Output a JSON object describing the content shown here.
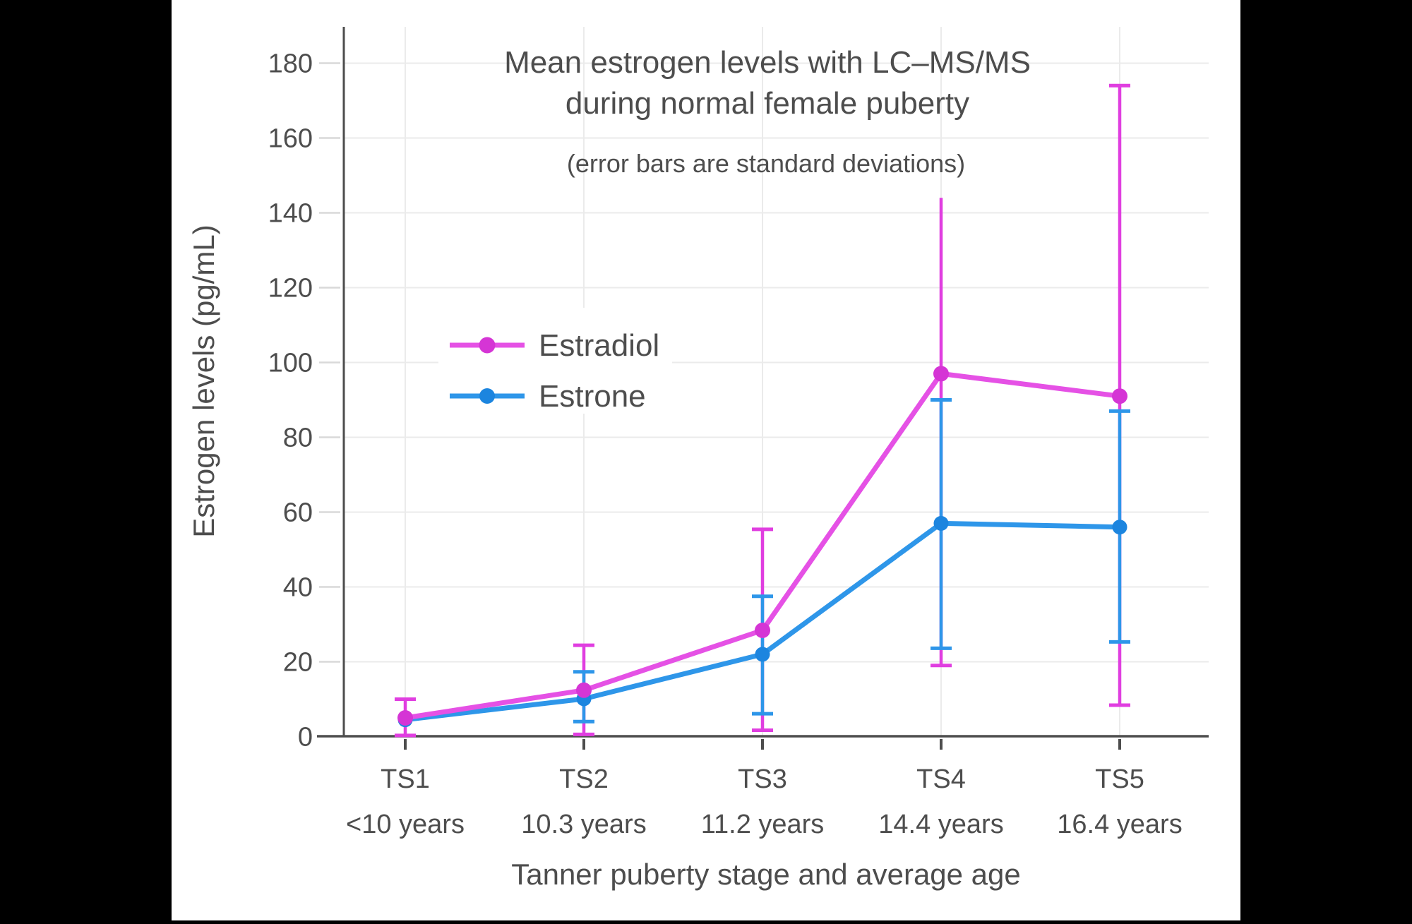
{
  "page": {
    "background_bar_color": "#000000",
    "canvas_color": "#ffffff"
  },
  "chart_data": {
    "type": "line",
    "title": "Mean estrogen levels with LC–MS/MS",
    "title_line2": "during normal female puberty",
    "subtitle": "(error bars are standard deviations)",
    "xlabel": "Tanner puberty stage and average age",
    "ylabel": "Estrogen levels (pg/mL)",
    "x_tick_top": [
      "TS1",
      "TS2",
      "TS3",
      "TS4",
      "TS5"
    ],
    "x_tick_bottom": [
      "<10 years",
      "10.3 years",
      "11.2 years",
      "14.4 years",
      "16.4 years"
    ],
    "y_ticks": [
      0,
      20,
      40,
      60,
      80,
      100,
      120,
      140,
      160,
      180
    ],
    "ylim": [
      0,
      190
    ],
    "grid": true,
    "legend_position": "inside upper-left",
    "colors": {
      "axis": "#4d4d4d",
      "text": "#4d4d4d",
      "gridline": "#ebebeb",
      "y_tick_dash": "#d9d9d9"
    },
    "series": [
      {
        "name": "Estradiol",
        "color": "#E551E5",
        "error_color": "#E03EE0",
        "marker_color": "#D535D5",
        "values": [
          5,
          12.4,
          28.4,
          97,
          91
        ],
        "err_low": [
          0.3,
          0.6,
          1.7,
          19,
          8.4
        ],
        "err_high": [
          10,
          24.4,
          55.4,
          144,
          174
        ],
        "cap_top": [
          true,
          true,
          true,
          false,
          true
        ],
        "cap_bottom": [
          true,
          true,
          true,
          true,
          true
        ]
      },
      {
        "name": "Estrone",
        "color": "#2E96E9",
        "error_color": "#2E96E9",
        "marker_color": "#1C85DF",
        "values": [
          4.5,
          10.1,
          22,
          57,
          56
        ],
        "err_low": [
          null,
          4,
          6.1,
          23.6,
          25.3
        ],
        "err_high": [
          null,
          17.3,
          37.5,
          90,
          87
        ],
        "cap_top": [
          false,
          true,
          true,
          true,
          true
        ],
        "cap_bottom": [
          false,
          true,
          true,
          true,
          true
        ]
      }
    ]
  }
}
